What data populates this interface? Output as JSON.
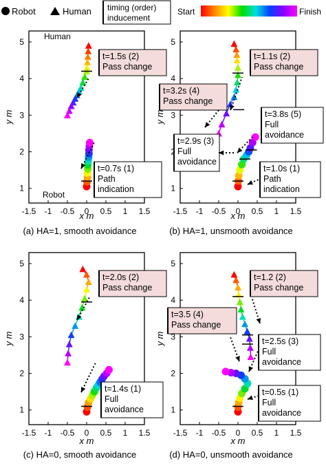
{
  "legend": {
    "robot_label": "Robot",
    "human_label": "Human",
    "timing_label_line1": "timing (order)",
    "timing_label_line2": "inducement",
    "start_label": "Start",
    "finish_label": "Finish",
    "gradient_colors": [
      "#ff0000",
      "#ff8800",
      "#ffff00",
      "#00dd00",
      "#00dddd",
      "#0044ff",
      "#8800ff",
      "#ff00ff"
    ]
  },
  "chart_data": [
    {
      "type": "scatter",
      "panel_caption": "(a) HA=1, smooth avoidance",
      "xlabel": "x m",
      "ylabel": "y m",
      "xlim": [
        -1.5,
        1.5
      ],
      "ylim": [
        0.6,
        5.3
      ],
      "xticks": [
        -1.5,
        -1,
        -0.5,
        0,
        0.5,
        1,
        1.5
      ],
      "yticks": [
        1,
        2,
        3,
        4,
        5
      ],
      "corner_labels": [
        "Human",
        "Robot"
      ],
      "human": {
        "x": [
          0.05,
          0.04,
          0.03,
          0.02,
          0.01,
          0.0,
          -0.05,
          -0.1,
          -0.15,
          -0.2,
          -0.25,
          -0.3,
          -0.35,
          -0.4,
          -0.45,
          -0.5
        ],
        "y": [
          4.9,
          4.75,
          4.6,
          4.45,
          4.3,
          4.2,
          4.05,
          3.9,
          3.75,
          3.65,
          3.55,
          3.45,
          3.35,
          3.25,
          3.12,
          3.0
        ]
      },
      "robot": {
        "x": [
          0.0,
          0.01,
          0.02,
          0.02,
          0.03,
          0.03,
          0.04,
          0.05,
          0.06,
          0.06,
          0.07,
          0.08
        ],
        "y": [
          1.05,
          1.18,
          1.3,
          1.42,
          1.53,
          1.64,
          1.75,
          1.85,
          1.95,
          2.05,
          2.15,
          2.25
        ]
      },
      "annotations": [
        {
          "line1": "t=1.5s (2)",
          "line2": "Pass change",
          "target": "human",
          "at": [
            0.0,
            4.2
          ]
        },
        {
          "line1": "t=0.7s (1)",
          "line2": "Path",
          "line3": "indication",
          "target": "robot",
          "at": [
            0.0,
            1.2
          ]
        }
      ]
    },
    {
      "type": "scatter",
      "panel_caption": "(b) HA=1, unsmooth avoidance",
      "xlabel": "x m",
      "ylabel": "y m",
      "xlim": [
        -1.5,
        1.5
      ],
      "ylim": [
        0.6,
        5.3
      ],
      "xticks": [
        -1.5,
        -1,
        -0.5,
        0,
        0.5,
        1,
        1.5
      ],
      "yticks": [
        1,
        2,
        3,
        4,
        5
      ],
      "human": {
        "x": [
          -0.1,
          -0.05,
          -0.03,
          -0.02,
          0.0,
          0.0,
          -0.02,
          -0.05,
          -0.1,
          -0.2,
          -0.3,
          -0.42,
          -0.5
        ],
        "y": [
          4.95,
          4.8,
          4.65,
          4.5,
          4.3,
          4.1,
          3.9,
          3.7,
          3.5,
          3.3,
          3.05,
          2.75,
          2.5
        ]
      },
      "robot": {
        "x": [
          0.0,
          0.01,
          0.02,
          0.05,
          0.1,
          0.15,
          0.22,
          0.28,
          0.32,
          0.38,
          0.45
        ],
        "y": [
          1.05,
          1.2,
          1.35,
          1.5,
          1.65,
          1.8,
          1.9,
          2.0,
          2.1,
          2.25,
          2.4
        ]
      },
      "annotations": [
        {
          "line1": "t=1.1s (2)",
          "line2": "Pass change",
          "target": "human",
          "at": [
            0.0,
            4.15
          ]
        },
        {
          "line1": "t=3.2s (4)",
          "line2": "Pass change",
          "target": "human",
          "at": [
            0.02,
            3.15
          ]
        },
        {
          "line1": "t=3.8s (5)",
          "line2": "Full",
          "line3": "avoidance",
          "target": "robot",
          "at": [
            0.35,
            2.05
          ]
        },
        {
          "line1": "t=2.9s (3)",
          "line2": "Full",
          "line3": "avoidance",
          "target": "robot",
          "at": [
            0.18,
            1.8
          ]
        },
        {
          "line1": "t=1.0s (1)",
          "line2": "Path",
          "line3": "indication",
          "target": "robot",
          "at": [
            0.0,
            1.2
          ]
        }
      ]
    },
    {
      "type": "scatter",
      "panel_caption": "(c) HA=0, smooth avoidance",
      "xlabel": "x m",
      "ylabel": "y m",
      "xlim": [
        -1.5,
        1.5
      ],
      "ylim": [
        0.6,
        5.3
      ],
      "xticks": [
        -1.5,
        -1,
        -0.5,
        0,
        0.5,
        1,
        1.5
      ],
      "yticks": [
        1,
        2,
        3,
        4,
        5
      ],
      "human": {
        "x": [
          -0.1,
          0.0,
          0.05,
          0.0,
          -0.05,
          -0.12,
          -0.2,
          -0.3,
          -0.4,
          -0.45,
          -0.48,
          -0.5
        ],
        "y": [
          4.85,
          4.7,
          4.5,
          4.3,
          4.05,
          3.8,
          3.55,
          3.3,
          3.05,
          2.8,
          2.55,
          2.3
        ]
      },
      "robot": {
        "x": [
          0.0,
          0.02,
          0.05,
          0.1,
          0.15,
          0.2,
          0.25,
          0.3,
          0.35,
          0.4,
          0.45,
          0.52,
          0.58
        ],
        "y": [
          0.95,
          1.08,
          1.2,
          1.3,
          1.4,
          1.5,
          1.6,
          1.68,
          1.76,
          1.84,
          1.92,
          2.0,
          2.1
        ]
      },
      "annotations": [
        {
          "line1": "t=2.0s (2)",
          "line2": "Pass change",
          "target": "human",
          "at": [
            0.0,
            3.95
          ]
        },
        {
          "line1": "t=1.4s (1)",
          "line2": "Full",
          "line3": "avoidance",
          "target": "robot",
          "at": [
            0.0,
            1.1
          ]
        }
      ]
    },
    {
      "type": "scatter",
      "panel_caption": "(d) HA=0, unsmooth avoidance",
      "xlabel": "x m",
      "ylabel": "y m",
      "xlim": [
        -1.5,
        1.5
      ],
      "ylim": [
        0.6,
        5.3
      ],
      "xticks": [
        -1.5,
        -1,
        -0.5,
        0,
        0.5,
        1,
        1.5
      ],
      "yticks": [
        1,
        2,
        3,
        4,
        5
      ],
      "human": {
        "x": [
          -0.1,
          -0.05,
          0.0,
          0.02,
          0.05,
          0.08,
          0.12,
          0.18,
          0.24,
          0.3,
          0.32,
          0.33
        ],
        "y": [
          4.7,
          4.55,
          4.35,
          4.15,
          3.95,
          3.75,
          3.55,
          3.35,
          3.15,
          2.95,
          2.7,
          2.45
        ]
      },
      "robot": {
        "x": [
          0.0,
          0.0,
          0.02,
          0.05,
          0.1,
          0.18,
          0.25,
          0.18,
          0.08,
          -0.05,
          -0.18,
          -0.32
        ],
        "y": [
          0.95,
          1.08,
          1.2,
          1.32,
          1.45,
          1.58,
          1.72,
          1.85,
          1.95,
          2.0,
          2.02,
          2.05
        ]
      },
      "annotations": [
        {
          "line1": "t=1.2 (2)",
          "line2": "Pass change",
          "target": "human",
          "at": [
            0.0,
            4.1
          ]
        },
        {
          "line1": "t=3.5 (4)",
          "line2": "Pass change",
          "target": "human",
          "at": [
            0.25,
            3.05
          ]
        },
        {
          "line1": "t=2.5s (3)",
          "line2": "Full",
          "line3": "avoidance",
          "target": "robot",
          "at": [
            0.25,
            2.8
          ]
        },
        {
          "line1": "t=0.5s (1)",
          "line2": "Full",
          "line3": "avoidance",
          "target": "robot",
          "at": [
            0.0,
            1.1
          ]
        }
      ]
    }
  ]
}
